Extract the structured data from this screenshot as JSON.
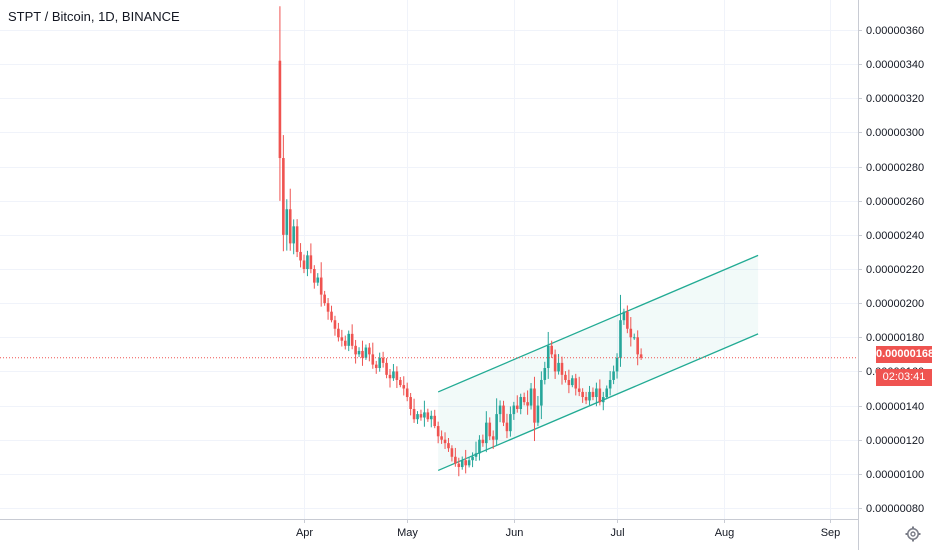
{
  "chart": {
    "title": "STPT / Bitcoin, 1D, BINANCE",
    "price_badge": "0.00000168",
    "timer": "02:03:41",
    "up_color": "#26a69a",
    "down_color": "#ef5350",
    "channel_color": "#22ab94",
    "grid": true,
    "settings_icon": "gear-icon"
  },
  "chart_data": {
    "type": "candlestick",
    "title": "STPT / Bitcoin, 1D, BINANCE",
    "yaxis_ticks": [
      "0.00000080",
      "0.00000100",
      "0.00000120",
      "0.00000140",
      "0.00000160",
      "0.00000180",
      "0.00000200",
      "0.00000220",
      "0.00000240",
      "0.00000260",
      "0.00000280",
      "0.00000300",
      "0.00000320",
      "0.00000340",
      "0.00000360"
    ],
    "xaxis_ticks": [
      "Apr",
      "May",
      "Jun",
      "Jul",
      "Aug",
      "Sep"
    ],
    "ylim": [
      7e-07,
      3.75e-06
    ],
    "last_price": 1.68e-06,
    "start_date": "2020-03-25",
    "closes": [
      2.85e-06,
      2.4e-06,
      2.55e-06,
      2.35e-06,
      2.45e-06,
      2.3e-06,
      2.25e-06,
      2.2e-06,
      2.28e-06,
      2.2e-06,
      2.12e-06,
      2.15e-06,
      2.05e-06,
      2e-06,
      1.95e-06,
      1.9e-06,
      1.85e-06,
      1.8e-06,
      1.78e-06,
      1.75e-06,
      1.82e-06,
      1.75e-06,
      1.7e-06,
      1.72e-06,
      1.68e-06,
      1.74e-06,
      1.7e-06,
      1.64e-06,
      1.62e-06,
      1.68e-06,
      1.65e-06,
      1.58e-06,
      1.56e-06,
      1.6e-06,
      1.55e-06,
      1.52e-06,
      1.5e-06,
      1.45e-06,
      1.38e-06,
      1.32e-06,
      1.35e-06,
      1.33e-06,
      1.36e-06,
      1.32e-06,
      1.34e-06,
      1.28e-06,
      1.22e-06,
      1.2e-06,
      1.18e-06,
      1.15e-06,
      1.1e-06,
      1.06e-06,
      1.04e-06,
      1.08e-06,
      1.05e-06,
      1.08e-06,
      1.1e-06,
      1.12e-06,
      1.2e-06,
      1.18e-06,
      1.3e-06,
      1.22e-06,
      1.2e-06,
      1.35e-06,
      1.4e-06,
      1.3e-06,
      1.25e-06,
      1.35e-06,
      1.4e-06,
      1.38e-06,
      1.45e-06,
      1.42e-06,
      1.4e-06,
      1.5e-06,
      1.3e-06,
      1.4e-06,
      1.55e-06,
      1.62e-06,
      1.75e-06,
      1.7e-06,
      1.6e-06,
      1.65e-06,
      1.58e-06,
      1.55e-06,
      1.52e-06,
      1.56e-06,
      1.5e-06,
      1.48e-06,
      1.45e-06,
      1.43e-06,
      1.48e-06,
      1.45e-06,
      1.5e-06,
      1.42e-06,
      1.45e-06,
      1.5e-06,
      1.55e-06,
      1.6e-06,
      1.68e-06,
      1.9e-06,
      1.95e-06,
      1.85e-06,
      1.8e-06,
      1.8e-06,
      1.7e-06,
      1.68e-06
    ],
    "channel": {
      "lower": [
        {
          "date": "2020-05-10",
          "y": 1.02e-06
        },
        {
          "date": "2020-08-11",
          "y": 1.82e-06
        }
      ],
      "upper": [
        {
          "date": "2020-05-10",
          "y": 1.48e-06
        },
        {
          "date": "2020-08-11",
          "y": 2.28e-06
        }
      ]
    }
  }
}
